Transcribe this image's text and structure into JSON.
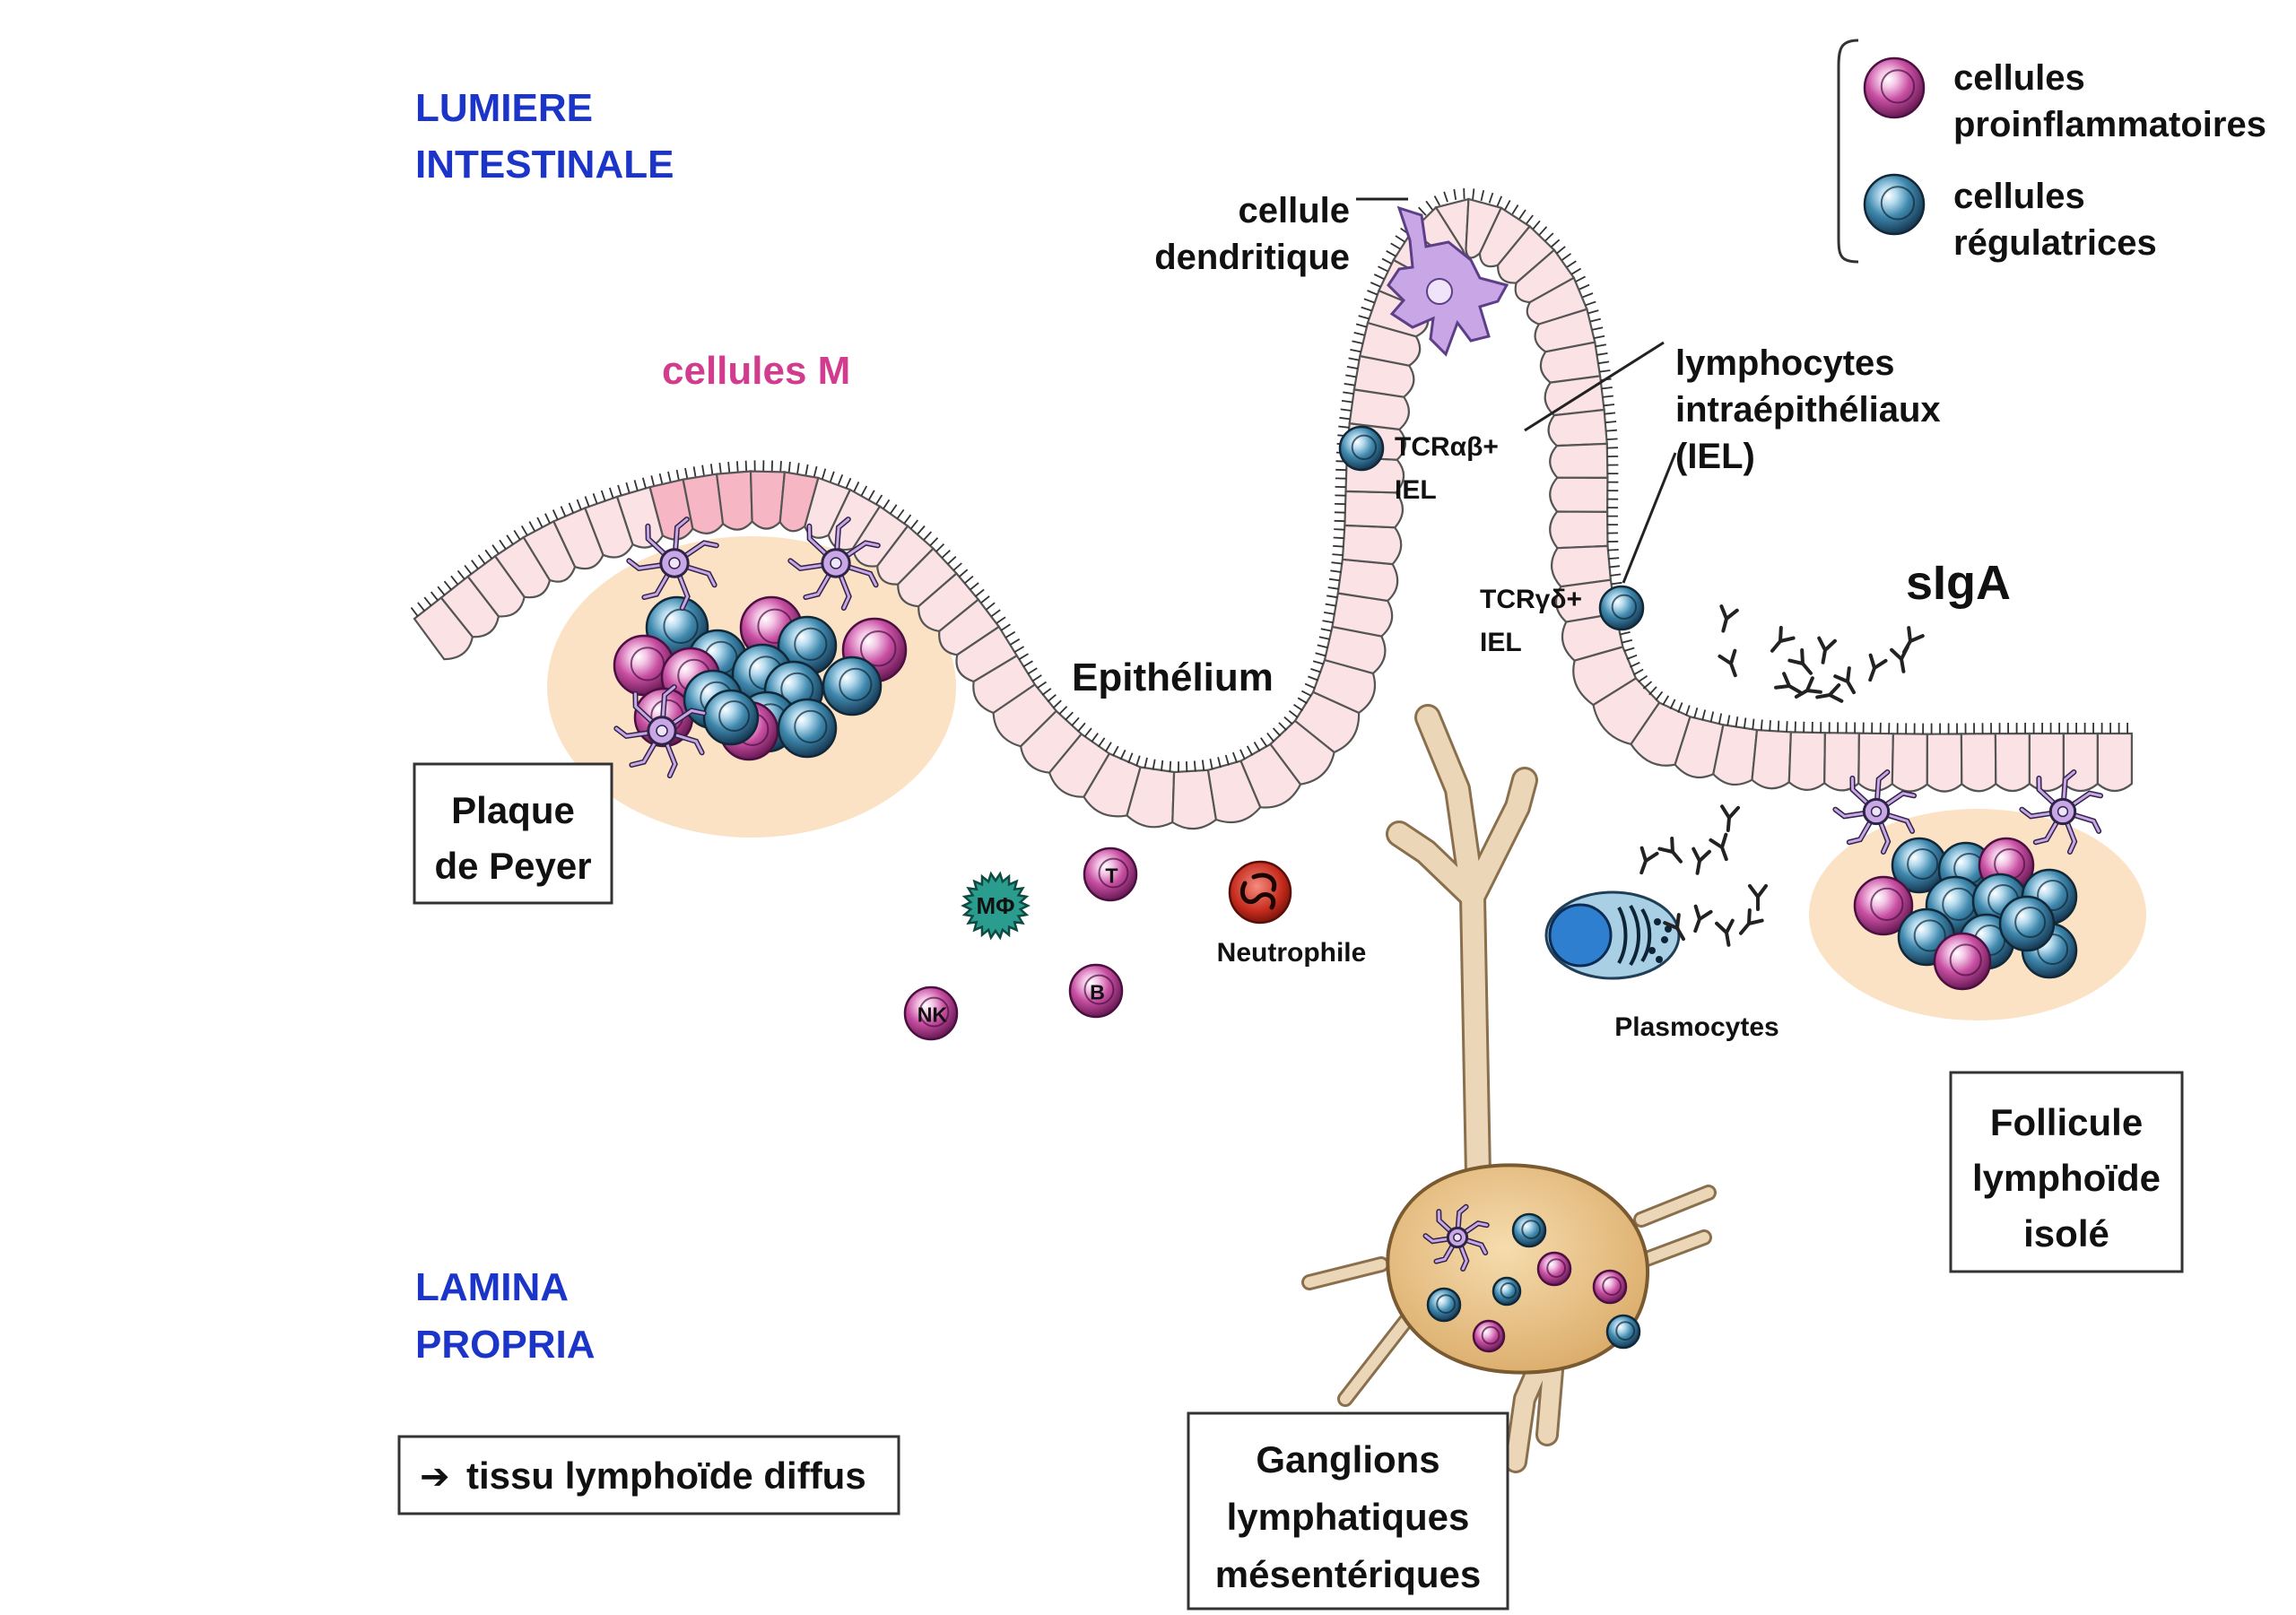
{
  "regions": {
    "lumen_line1": "LUMIERE",
    "lumen_line2": "INTESTINALE",
    "lamina_line1": "LAMINA",
    "lamina_line2": "PROPRIA"
  },
  "legend": {
    "proinflammatory_line1": "cellules",
    "proinflammatory_line2": "proinflammatoires",
    "regulatory_line1": "cellules",
    "regulatory_line2": "régulatrices"
  },
  "labels": {
    "m_cells": "cellules M",
    "dendritic_line1": "cellule",
    "dendritic_line2": "dendritique",
    "iel_line1": "lymphocytes",
    "iel_line2": "intraépithéliaux",
    "iel_line3": "(IEL)",
    "tcr_ab_line1": "TCRαβ+",
    "tcr_ab_line2": "IEL",
    "tcr_gd_line1": "TCRγδ+",
    "tcr_gd_line2": "IEL",
    "epithelium": "Epithélium",
    "siga": "sIgA",
    "neutrophil": "Neutrophile",
    "plasmocytes": "Plasmocytes",
    "macrophage": "MΦ",
    "t_cell": "T",
    "b_cell": "B",
    "nk_cell": "NK"
  },
  "boxes": {
    "peyer_line1": "Plaque",
    "peyer_line2": "de Peyer",
    "follicle_line1": "Follicule",
    "follicle_line2": "lymphoïde",
    "follicle_line3": "isolé",
    "ganglion_line1": "Ganglions",
    "ganglion_line2": "lymphatiques",
    "ganglion_line3": "mésentériques",
    "diffuse_arrow": "➔",
    "diffuse_text": "tissu lymphoïde diffus"
  },
  "colors": {
    "region_label": "#1b35c9",
    "m_cell_label": "#d23c8e",
    "epithelium_fill": "#fbe3e5",
    "m_cell_fill": "#f7b6c4",
    "follicle_fill": "#fbe3c8",
    "proinflammatory": "#d36bb2",
    "regulatory": "#3f88ad",
    "dendritic": "#c9a6e6",
    "macrophage": "#2a9d8f",
    "neutrophil": "#d33a2a",
    "lymph_vessel": "#e9d3b4",
    "node_fill": "#e8c088"
  },
  "icons": {
    "dendritic_cell": "dendritic-cell-icon",
    "antibody": "antibody-icon",
    "plasmocyte": "plasmocyte-icon",
    "lymph_node": "lymph-node-icon"
  }
}
